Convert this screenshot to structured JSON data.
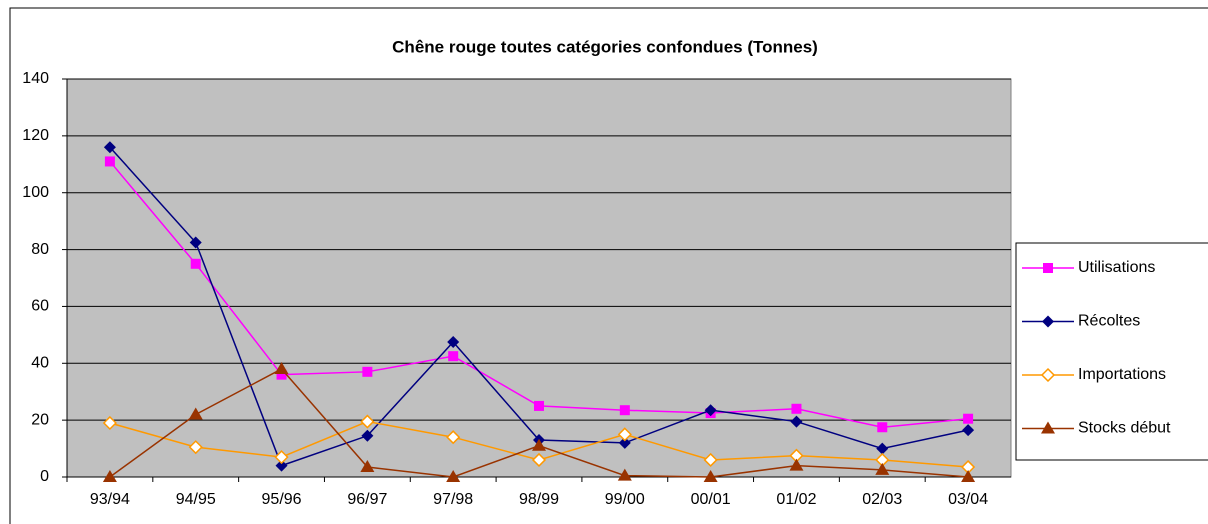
{
  "chart_data": {
    "type": "line",
    "title": "Chêne rouge toutes catégories confondues (Tonnes)",
    "categories": [
      "93/94",
      "94/95",
      "95/96",
      "96/97",
      "97/98",
      "98/99",
      "99/00",
      "00/01",
      "01/02",
      "02/03",
      "03/04"
    ],
    "series": [
      {
        "name": "Utilisations",
        "color": "#FF00FF",
        "marker": "square",
        "values": [
          111,
          75,
          36,
          37,
          42.5,
          25,
          23.5,
          22.5,
          24,
          17.5,
          20.5
        ]
      },
      {
        "name": "Récoltes",
        "color": "#000080",
        "marker": "diamond",
        "values": [
          116,
          82.5,
          4,
          14.5,
          47.5,
          13,
          12,
          23.5,
          19.5,
          10,
          16.5
        ]
      },
      {
        "name": "Importations",
        "color": "#FF9900",
        "marker": "open-diamond",
        "values": [
          19,
          10.5,
          7,
          19.5,
          14,
          6,
          15,
          6,
          7.5,
          6,
          3.5
        ]
      },
      {
        "name": "Stocks début",
        "color": "#993300",
        "marker": "triangle",
        "values": [
          0,
          22,
          38,
          3.5,
          0,
          11,
          0.5,
          0,
          4,
          2.5,
          0
        ]
      }
    ],
    "ylim": [
      0,
      140
    ],
    "yticks": [
      0,
      20,
      40,
      60,
      80,
      100,
      120,
      140
    ],
    "grid": true,
    "legend": "right"
  }
}
